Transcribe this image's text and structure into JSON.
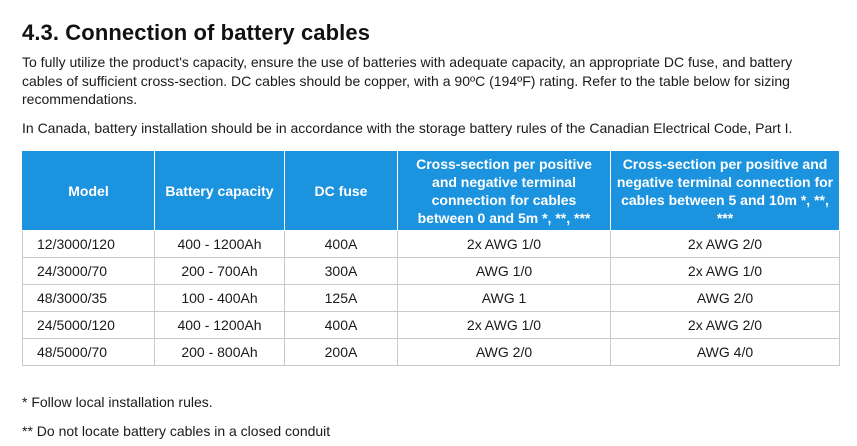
{
  "section": {
    "title": "4.3. Connection of battery cables",
    "paragraph_1": "To fully utilize the product's capacity, ensure the use of batteries with adequate capacity, an appropriate DC fuse, and battery cables of sufficient cross-section. DC cables should be copper, with a 90ºC (194ºF) rating. Refer to the table below for sizing recommendations.",
    "paragraph_2": "In Canada, battery installation should be in accordance with the storage battery rules of the Canadian Electrical Code, Part I."
  },
  "table": {
    "headers": [
      "Model",
      "Battery capacity",
      "DC fuse",
      "Cross-section per positive and negative terminal connection for cables between 0 and 5m *, **, ***",
      "Cross-section per positive and negative terminal connection for cables between 5 and 10m *, **, ***"
    ],
    "rows": [
      [
        "12/3000/120",
        "400 - 1200Ah",
        "400A",
        "2x AWG 1/0",
        "2x AWG 2/0"
      ],
      [
        "24/3000/70",
        "200 - 700Ah",
        "300A",
        "AWG 1/0",
        "2x AWG 1/0"
      ],
      [
        "48/3000/35",
        "100 - 400Ah",
        "125A",
        "AWG 1",
        "AWG 2/0"
      ],
      [
        "24/5000/120",
        "400 - 1200Ah",
        "400A",
        "2x AWG 1/0",
        "2x AWG 2/0"
      ],
      [
        "48/5000/70",
        "200 - 800Ah",
        "200A",
        "AWG 2/0",
        "AWG 4/0"
      ]
    ]
  },
  "footnotes": [
    "* Follow local installation rules.",
    "** Do not locate battery cables in a closed conduit"
  ],
  "colors": {
    "header_background": "#1b93df",
    "header_text": "#ffffff",
    "grid_line": "#c9c9c9"
  }
}
